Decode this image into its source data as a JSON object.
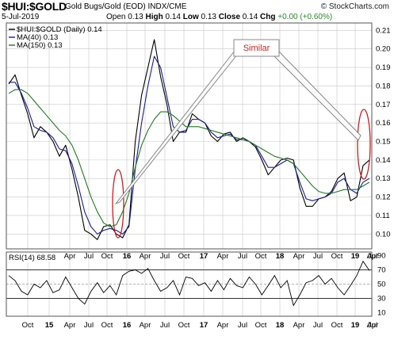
{
  "header": {
    "symbol": "$HUI:$GOLD",
    "description": "Gold Bugs/Gold (EOD) INDX/CME",
    "watermark": "© StockCharts.com",
    "date": "5-Jul-2019",
    "open_label": "Open",
    "open": "0.13",
    "high_label": "High",
    "high": "0.14",
    "low_label": "Low",
    "low": "0.13",
    "close_label": "Close",
    "close": "0.14",
    "chg_label": "Chg",
    "chg": "+0.00 (+0.60%)"
  },
  "legend": {
    "main": "$HUI:$GOLD (Daily) 0.14",
    "ma40": "MA(40) 0.13",
    "ma150": "MA(150) 0.13"
  },
  "annotation": {
    "label": "Similar"
  },
  "rsi_label": "RSI(14) 68.58",
  "colors": {
    "price": "#000000",
    "ma40": "#1a1a9c",
    "ma150": "#1f7a1f",
    "annotation": "#cc1f1f",
    "grid": "#c8c8c8"
  },
  "chart_data": [
    {
      "type": "line",
      "title": "$HUI:$GOLD (Daily)",
      "x_ticks": [
        "Oct",
        "15",
        "Apr",
        "Jul",
        "Oct",
        "16",
        "Apr",
        "Jul",
        "Oct",
        "17",
        "Apr",
        "Jul",
        "Oct",
        "18",
        "Apr",
        "Jul",
        "Oct",
        "19",
        "Apr",
        "Jul"
      ],
      "y_ticks": [
        0.1,
        0.11,
        0.12,
        0.13,
        0.14,
        0.15,
        0.16,
        0.17,
        0.18,
        0.19,
        0.2,
        0.21
      ],
      "ylim": [
        0.092,
        0.214
      ],
      "x_range": [
        "2014-07",
        "2019-07"
      ],
      "series": [
        {
          "name": "$HUI:$GOLD (Daily)",
          "values": [
            0.181,
            0.186,
            0.175,
            0.165,
            0.152,
            0.158,
            0.155,
            0.15,
            0.142,
            0.148,
            0.135,
            0.12,
            0.102,
            0.1,
            0.097,
            0.104,
            0.105,
            0.1,
            0.098,
            0.105,
            0.15,
            0.175,
            0.19,
            0.205,
            0.185,
            0.17,
            0.15,
            0.155,
            0.155,
            0.165,
            0.162,
            0.16,
            0.153,
            0.15,
            0.154,
            0.155,
            0.15,
            0.152,
            0.15,
            0.147,
            0.14,
            0.132,
            0.136,
            0.14,
            0.141,
            0.14,
            0.125,
            0.115,
            0.115,
            0.119,
            0.12,
            0.123,
            0.13,
            0.133,
            0.118,
            0.12,
            0.137,
            0.14
          ]
        },
        {
          "name": "MA(40)",
          "values": [
            0.182,
            0.182,
            0.176,
            0.168,
            0.158,
            0.156,
            0.155,
            0.152,
            0.146,
            0.145,
            0.138,
            0.126,
            0.112,
            0.104,
            0.1,
            0.102,
            0.103,
            0.102,
            0.1,
            0.104,
            0.135,
            0.16,
            0.18,
            0.196,
            0.19,
            0.174,
            0.158,
            0.155,
            0.156,
            0.162,
            0.162,
            0.16,
            0.155,
            0.152,
            0.153,
            0.154,
            0.151,
            0.151,
            0.15,
            0.148,
            0.142,
            0.136,
            0.136,
            0.138,
            0.14,
            0.138,
            0.128,
            0.119,
            0.118,
            0.119,
            0.12,
            0.122,
            0.128,
            0.13,
            0.124,
            0.122,
            0.128,
            0.13
          ]
        },
        {
          "name": "MA(150)",
          "values": [
            0.176,
            0.178,
            0.178,
            0.176,
            0.172,
            0.168,
            0.164,
            0.16,
            0.156,
            0.153,
            0.148,
            0.14,
            0.13,
            0.12,
            0.112,
            0.106,
            0.104,
            0.105,
            0.112,
            0.122,
            0.136,
            0.148,
            0.156,
            0.162,
            0.166,
            0.166,
            0.164,
            0.161,
            0.158,
            0.158,
            0.158,
            0.157,
            0.156,
            0.155,
            0.154,
            0.153,
            0.152,
            0.151,
            0.15,
            0.148,
            0.146,
            0.144,
            0.142,
            0.141,
            0.14,
            0.138,
            0.134,
            0.13,
            0.126,
            0.123,
            0.122,
            0.122,
            0.123,
            0.124,
            0.124,
            0.124,
            0.126,
            0.128
          ]
        }
      ]
    },
    {
      "type": "line",
      "title": "RSI(14)",
      "y_ticks": [
        10,
        30,
        50,
        70,
        90
      ],
      "ylim": [
        5,
        95
      ],
      "reference_lines": [
        30,
        50,
        70
      ],
      "series": [
        {
          "name": "RSI(14)",
          "values": [
            62,
            55,
            40,
            35,
            50,
            45,
            55,
            38,
            42,
            60,
            45,
            30,
            22,
            40,
            52,
            38,
            48,
            35,
            62,
            68,
            70,
            65,
            72,
            55,
            40,
            45,
            55,
            35,
            60,
            58,
            48,
            52,
            40,
            55,
            42,
            58,
            48,
            45,
            60,
            50,
            35,
            48,
            62,
            45,
            55,
            20,
            35,
            52,
            55,
            62,
            50,
            58,
            45,
            35,
            48,
            62,
            82,
            69
          ]
        }
      ]
    }
  ]
}
